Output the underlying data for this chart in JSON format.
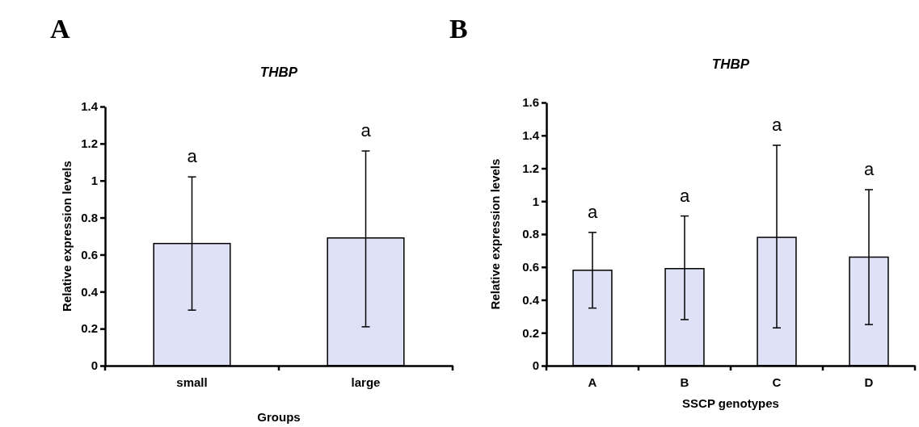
{
  "chart_data": [
    {
      "type": "bar",
      "title": "THBP",
      "xlabel": "Groups",
      "ylabel": "Relative expression levels",
      "categories": [
        "small",
        "large"
      ],
      "values": [
        0.66,
        0.69
      ],
      "errors": [
        [
          0.3,
          1.02
        ],
        [
          0.21,
          1.16
        ]
      ],
      "color": "#dfe2f7",
      "ylim": [
        0,
        1.4
      ],
      "yticks": [
        0,
        0.2,
        0.4,
        0.6,
        0.8,
        1,
        1.2,
        1.4
      ],
      "grid": false,
      "annotations": [
        "A",
        "a",
        "a"
      ]
    },
    {
      "type": "bar",
      "title": "THBP",
      "xlabel": "SSCP genotypes",
      "ylabel": "Relative expression levels",
      "categories": [
        "A",
        "B",
        "C",
        "D"
      ],
      "values": [
        0.58,
        0.59,
        0.78,
        0.66
      ],
      "errors": [
        [
          0.35,
          0.81
        ],
        [
          0.28,
          0.91
        ],
        [
          0.23,
          1.34
        ],
        [
          0.25,
          1.07
        ]
      ],
      "color": "#dfe2f7",
      "ylim": [
        0,
        1.6
      ],
      "yticks": [
        0,
        0.2,
        0.4,
        0.6,
        0.8,
        1,
        1.2,
        1.4,
        1.6
      ],
      "grid": false,
      "annotations": [
        "B",
        "a",
        "a",
        "a",
        "a"
      ]
    }
  ]
}
